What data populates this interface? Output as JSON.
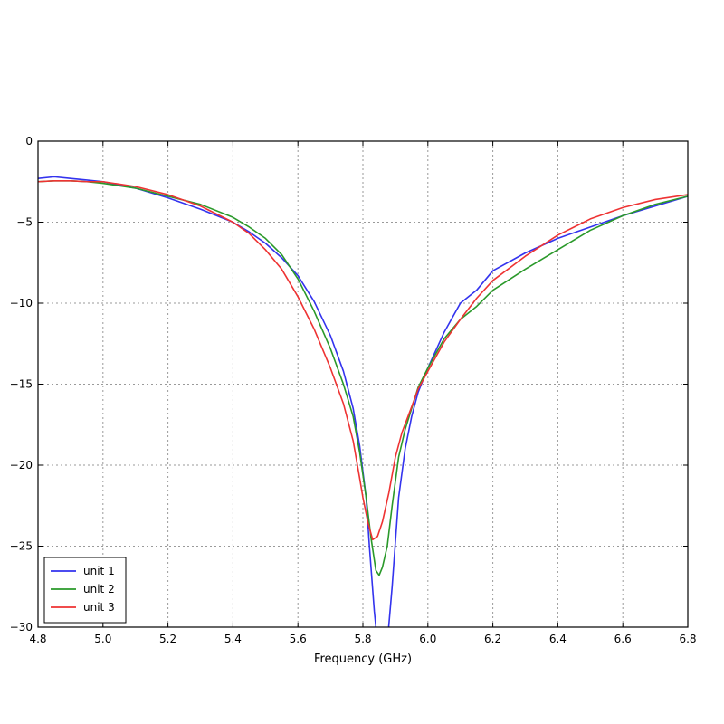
{
  "chart_data": {
    "type": "line",
    "title": "",
    "xlabel": "Frequency (GHz)",
    "ylabel": "",
    "xlim": [
      4.8,
      6.8
    ],
    "ylim": [
      -30,
      0
    ],
    "xticks": [
      4.8,
      5.0,
      5.2,
      5.4,
      5.6,
      5.8,
      6.0,
      6.2,
      6.4,
      6.6,
      6.8
    ],
    "xtick_labels": [
      "4.8",
      "5.0",
      "5.2",
      "5.4",
      "5.6",
      "5.8",
      "6.0",
      "6.2",
      "6.4",
      "6.6",
      "6.8"
    ],
    "yticks": [
      0,
      -5,
      -10,
      -15,
      -20,
      -25,
      -30
    ],
    "ytick_labels": [
      "0",
      "−5",
      "−10",
      "−15",
      "−20",
      "−25",
      "−30"
    ],
    "grid": true,
    "legend_position": "lower-left",
    "series": [
      {
        "name": "unit 1",
        "color": "#3333ee",
        "x": [
          4.8,
          4.85,
          4.9,
          4.95,
          5.0,
          5.1,
          5.2,
          5.3,
          5.4,
          5.45,
          5.5,
          5.55,
          5.6,
          5.65,
          5.7,
          5.74,
          5.77,
          5.79,
          5.81,
          5.82,
          5.835,
          5.845,
          5.86,
          5.875,
          5.89,
          5.91,
          5.93,
          5.95,
          5.97,
          6.0,
          6.05,
          6.1,
          6.15,
          6.2,
          6.3,
          6.4,
          6.5,
          6.6,
          6.7,
          6.8
        ],
        "y": [
          -2.3,
          -2.2,
          -2.3,
          -2.4,
          -2.5,
          -2.9,
          -3.5,
          -4.2,
          -5.0,
          -5.6,
          -6.3,
          -7.2,
          -8.3,
          -9.9,
          -12.0,
          -14.2,
          -16.5,
          -18.8,
          -22.0,
          -25.0,
          -29.0,
          -31.0,
          -31.0,
          -31.0,
          -27.5,
          -22.0,
          -19.0,
          -17.0,
          -15.5,
          -14.0,
          -11.8,
          -10.0,
          -9.2,
          -8.0,
          -6.9,
          -6.0,
          -5.3,
          -4.6,
          -4.0,
          -3.4
        ]
      },
      {
        "name": "unit 2",
        "color": "#2a992a",
        "x": [
          4.8,
          4.85,
          4.9,
          4.95,
          5.0,
          5.1,
          5.2,
          5.3,
          5.4,
          5.45,
          5.5,
          5.55,
          5.6,
          5.65,
          5.7,
          5.74,
          5.77,
          5.79,
          5.81,
          5.825,
          5.84,
          5.85,
          5.86,
          5.875,
          5.89,
          5.91,
          5.93,
          5.95,
          5.97,
          6.0,
          6.05,
          6.1,
          6.15,
          6.2,
          6.3,
          6.4,
          6.5,
          6.6,
          6.7,
          6.8
        ],
        "y": [
          -2.5,
          -2.45,
          -2.45,
          -2.5,
          -2.6,
          -2.9,
          -3.4,
          -3.9,
          -4.7,
          -5.3,
          -6.0,
          -7.0,
          -8.5,
          -10.5,
          -12.8,
          -15.0,
          -17.0,
          -19.2,
          -22.0,
          -24.5,
          -26.5,
          -26.8,
          -26.3,
          -25.0,
          -22.5,
          -19.5,
          -17.8,
          -16.5,
          -15.2,
          -14.0,
          -12.2,
          -11.0,
          -10.2,
          -9.2,
          -7.9,
          -6.7,
          -5.5,
          -4.6,
          -3.9,
          -3.4
        ]
      },
      {
        "name": "unit 3",
        "color": "#ee3333",
        "x": [
          4.8,
          4.85,
          4.9,
          4.95,
          5.0,
          5.1,
          5.2,
          5.3,
          5.4,
          5.45,
          5.5,
          5.55,
          5.6,
          5.65,
          5.7,
          5.74,
          5.77,
          5.79,
          5.8,
          5.815,
          5.83,
          5.845,
          5.86,
          5.88,
          5.9,
          5.92,
          5.95,
          5.97,
          6.0,
          6.05,
          6.1,
          6.15,
          6.2,
          6.3,
          6.4,
          6.5,
          6.6,
          6.7,
          6.8
        ],
        "y": [
          -2.5,
          -2.45,
          -2.45,
          -2.5,
          -2.5,
          -2.8,
          -3.3,
          -4.0,
          -5.0,
          -5.7,
          -6.7,
          -7.9,
          -9.6,
          -11.6,
          -14.0,
          -16.2,
          -18.5,
          -20.8,
          -22.0,
          -23.5,
          -24.6,
          -24.4,
          -23.5,
          -21.7,
          -19.5,
          -18.0,
          -16.4,
          -15.3,
          -14.2,
          -12.4,
          -11.0,
          -9.7,
          -8.6,
          -7.1,
          -5.8,
          -4.8,
          -4.1,
          -3.6,
          -3.3
        ]
      }
    ]
  }
}
